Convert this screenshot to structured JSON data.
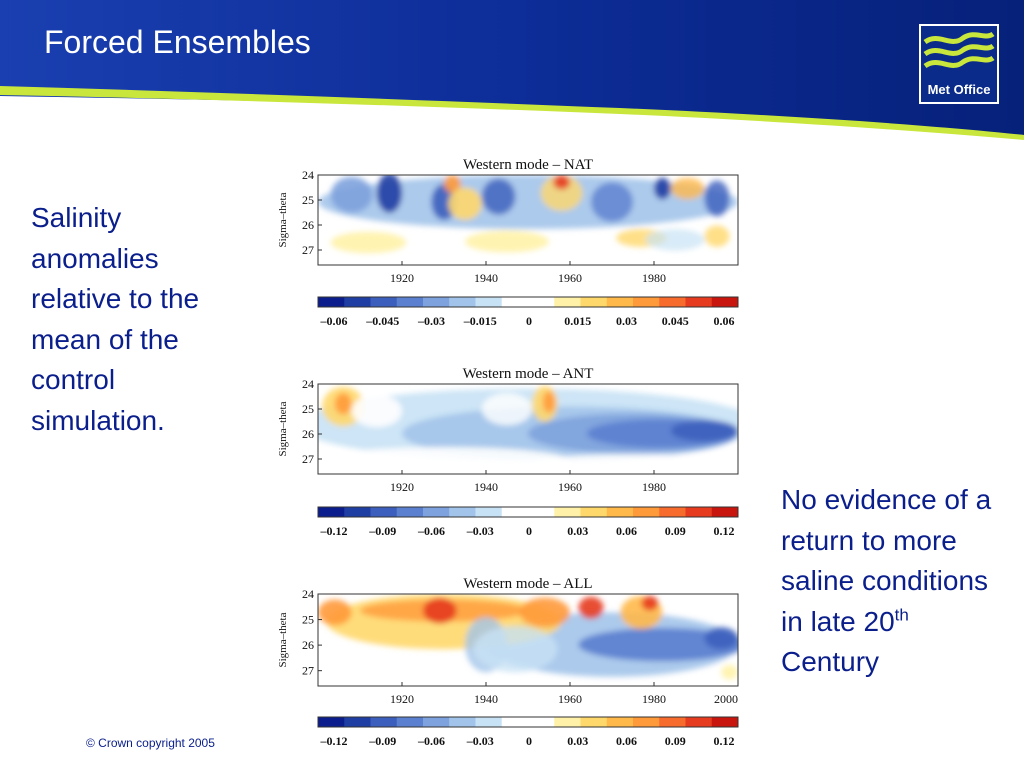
{
  "slide": {
    "title": "Forced Ensembles",
    "logo_text": "Met Office",
    "left_text": "Salinity anomalies relative to the mean of the control simulation.",
    "right_text_main": "No evidence of a return to more saline conditions in late 20",
    "right_text_sup": "th",
    "right_text_end": "Century",
    "copyright": "© Crown copyright 2005"
  },
  "colors": {
    "header_blue": "#0a2b8a",
    "accent_green": "#c8e63c",
    "text_blue": "#0a1e8c",
    "colorbar": [
      "#0b1c8c",
      "#1f3ea3",
      "#3c5fbd",
      "#5b80cf",
      "#7ea2dd",
      "#a3c4ea",
      "#c8e2f5",
      "#ffffff",
      "#ffffff",
      "#fff2a8",
      "#ffd86b",
      "#ffb94a",
      "#ff9a3a",
      "#f76b2c",
      "#e63b1f",
      "#c8160f"
    ]
  },
  "chart_data": [
    {
      "type": "heatmap",
      "title": "Western mode – NAT",
      "ylabel": "Sigma–theta",
      "yticks": [
        "24",
        "25",
        "26",
        "27"
      ],
      "xticks": [
        "1920",
        "1940",
        "1960",
        "1980"
      ],
      "ylim": [
        24,
        27.6
      ],
      "xlim": [
        1900,
        2000
      ],
      "colorbar_ticks": [
        "–0.06",
        "–0.045",
        "–0.03",
        "–0.015",
        "0",
        "0.015",
        "0.03",
        "0.045",
        "0.06"
      ],
      "colorbar_range": [
        -0.06,
        0.06
      ]
    },
    {
      "type": "heatmap",
      "title": "Western mode – ANT",
      "ylabel": "Sigma–theta",
      "yticks": [
        "24",
        "25",
        "26",
        "27"
      ],
      "xticks": [
        "1920",
        "1940",
        "1960",
        "1980"
      ],
      "ylim": [
        24,
        27.6
      ],
      "xlim": [
        1900,
        2000
      ],
      "colorbar_ticks": [
        "–0.12",
        "–0.09",
        "–0.06",
        "–0.03",
        "0",
        "0.03",
        "0.06",
        "0.09",
        "0.12"
      ],
      "colorbar_range": [
        -0.12,
        0.12
      ]
    },
    {
      "type": "heatmap",
      "title": "Western mode – ALL",
      "ylabel": "Sigma–theta",
      "yticks": [
        "24",
        "25",
        "26",
        "27"
      ],
      "xticks": [
        "1920",
        "1940",
        "1960",
        "1980",
        "2000"
      ],
      "ylim": [
        24,
        27.6
      ],
      "xlim": [
        1900,
        2000
      ],
      "colorbar_ticks": [
        "–0.12",
        "–0.09",
        "–0.06",
        "–0.03",
        "0",
        "0.03",
        "0.06",
        "0.09",
        "0.12"
      ],
      "colorbar_range": [
        -0.12,
        0.12
      ]
    }
  ]
}
